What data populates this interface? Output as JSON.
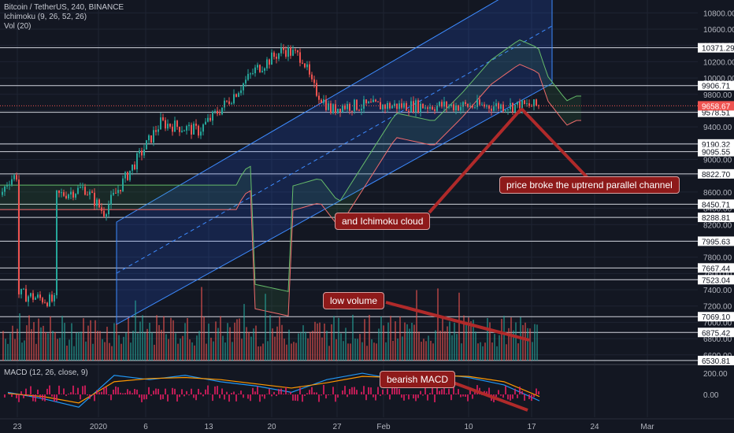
{
  "legend": {
    "symbol": "Bitcoin / TetherUS, 240, BINANCE",
    "ichimoku": "Ichimoku (9, 26, 52, 26)",
    "volume": "Vol (20)",
    "macd": "MACD (12, 26, close, 9)"
  },
  "annotations": [
    "price broke the uptrend parallel channel",
    "and Ichimoku cloud",
    "low volume",
    "bearish MACD"
  ],
  "colors": {
    "background": "#131722",
    "bull": "#26a69a",
    "bear": "#ef5350",
    "channel": "#2962ff",
    "annotation": "#8e1a1a",
    "macd_line": "#2196f3",
    "signal_line": "#ff9800"
  },
  "chart_data": [
    {
      "type": "candlestick",
      "title": "Bitcoin / TetherUS, 240, BINANCE",
      "x_ticks": [
        "23",
        "2020",
        "6",
        "13",
        "20",
        "27",
        "Feb",
        "10",
        "17",
        "24",
        "Mar"
      ],
      "y_ticks": [
        6600,
        6800,
        7000,
        7200,
        7400,
        7600,
        7800,
        8000,
        8200,
        8400,
        8600,
        8800,
        9000,
        9200,
        9400,
        9600,
        9800,
        10000,
        10200,
        10400,
        10600,
        10800
      ],
      "ylim": [
        6530,
        10900
      ],
      "horizontal_levels": [
        10371.29,
        9906.71,
        9578.51,
        9190.32,
        9095.55,
        8822.7,
        8450.71,
        8288.81,
        7995.63,
        7667.44,
        7523.04,
        7069.1,
        6875.42,
        6530.81
      ],
      "last_price": "9658.67",
      "price_path": [
        {
          "t": "Dec 23",
          "price": 7350
        },
        {
          "t": "Dec 27",
          "price": 7250
        },
        {
          "t": "Jan 1",
          "price": 7200
        },
        {
          "t": "Jan 3",
          "price": 6900
        },
        {
          "t": "Jan 6",
          "price": 7700
        },
        {
          "t": "Jan 8",
          "price": 8200
        },
        {
          "t": "Jan 10",
          "price": 7850
        },
        {
          "t": "Jan 14",
          "price": 8750
        },
        {
          "t": "Jan 17",
          "price": 8950
        },
        {
          "t": "Jan 19",
          "price": 8550
        },
        {
          "t": "Jan 22",
          "price": 8650
        },
        {
          "t": "Jan 24",
          "price": 8350
        },
        {
          "t": "Jan 27",
          "price": 8900
        },
        {
          "t": "Jan 30",
          "price": 9450
        },
        {
          "t": "Feb 3",
          "price": 9350
        },
        {
          "t": "Feb 6",
          "price": 9700
        },
        {
          "t": "Feb 9",
          "price": 10100
        },
        {
          "t": "Feb 12",
          "price": 10350
        },
        {
          "t": "Feb 14",
          "price": 10250
        },
        {
          "t": "Feb 15",
          "price": 9900
        },
        {
          "t": "Feb 17",
          "price": 9600
        },
        {
          "t": "Feb 18",
          "price": 9658.67
        }
      ],
      "volume_note": "low volume"
    },
    {
      "type": "line",
      "title": "MACD (12, 26, close, 9)",
      "y_ticks": [
        200,
        0
      ],
      "series": [
        {
          "name": "MACD",
          "values": [
            20,
            -40,
            -120,
            180,
            140,
            180,
            120,
            80,
            20,
            140,
            200,
            140,
            200,
            160,
            90,
            -60
          ]
        },
        {
          "name": "Signal",
          "values": [
            10,
            -20,
            -80,
            120,
            150,
            160,
            140,
            100,
            60,
            110,
            170,
            160,
            180,
            170,
            120,
            -20
          ]
        }
      ]
    }
  ]
}
